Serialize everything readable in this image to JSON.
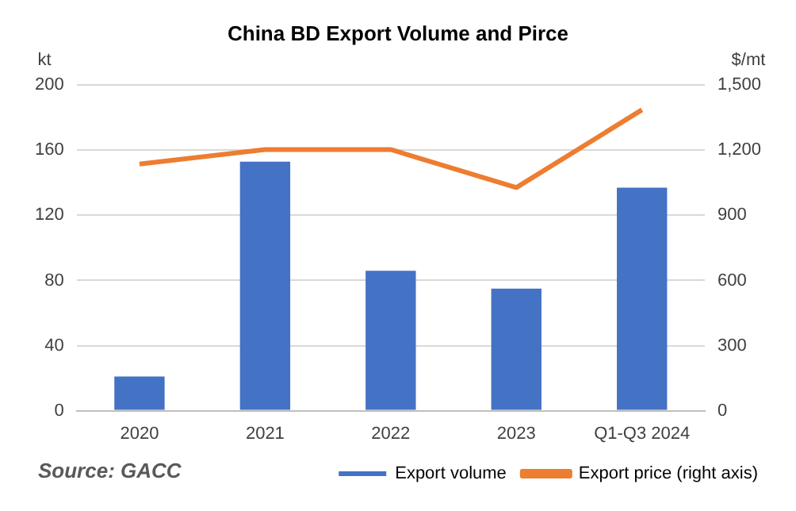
{
  "chart_data": {
    "type": "bar",
    "title": "China BD Export Volume and Pirce",
    "ylabel": "kt",
    "y2label": "$/mt",
    "categories": [
      "2020",
      "2021",
      "2022",
      "2023",
      "Q1-Q3 2024"
    ],
    "series": [
      {
        "name": "Export volume",
        "color": "#4472c4",
        "values": [
          21,
          153,
          86,
          75,
          137
        ]
      },
      {
        "name": "Export price (right axis)",
        "type": "line",
        "axis": "y2",
        "color": "#ed7d31",
        "values": [
          1136,
          1203,
          1203,
          1028,
          1386
        ]
      }
    ],
    "ylim": [
      0,
      200
    ],
    "yticks": [
      0,
      40,
      80,
      120,
      160,
      200
    ],
    "y2lim": [
      0,
      1500
    ],
    "y2ticks": [
      {
        "value": 0,
        "label": "0"
      },
      {
        "value": 300,
        "label": "300"
      },
      {
        "value": 600,
        "label": "600"
      },
      {
        "value": 900,
        "label": "900"
      },
      {
        "value": 1200,
        "label": "1,200"
      },
      {
        "value": 1500,
        "label": "1,500"
      }
    ],
    "grid": "y",
    "legend": "bottom",
    "marker": "none",
    "annotations": [
      "Source: GACC"
    ]
  }
}
